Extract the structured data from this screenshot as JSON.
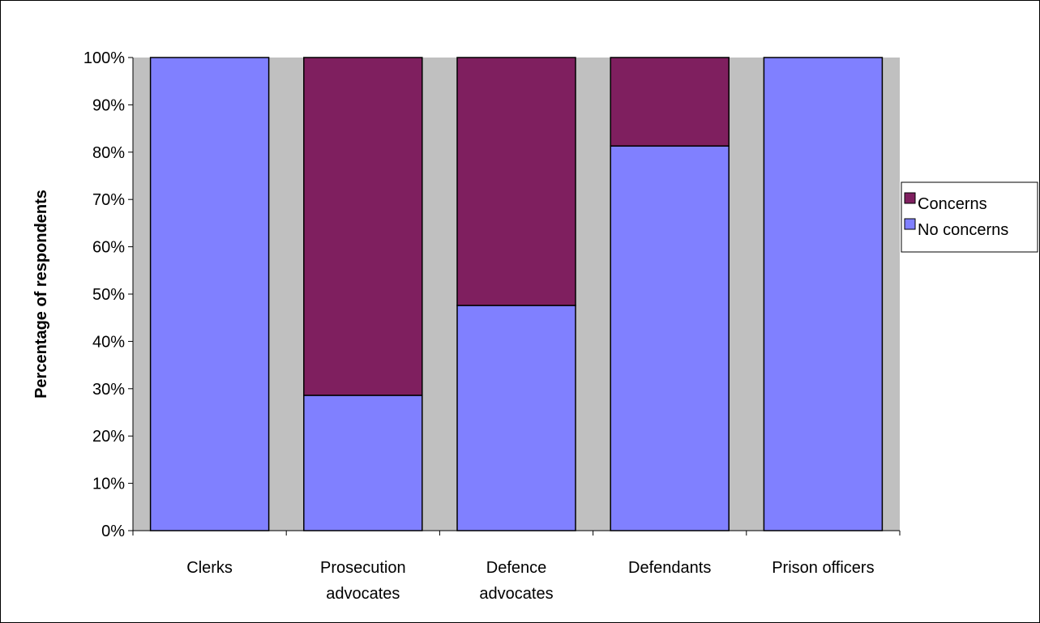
{
  "chart_data": {
    "type": "bar",
    "stacked": true,
    "percent_stacked": true,
    "title": "",
    "xlabel": "",
    "ylabel": "Percentage of respondents",
    "categories": [
      [
        "Clerks"
      ],
      [
        "Prosecution",
        "advocates"
      ],
      [
        "Defence",
        "advocates"
      ],
      [
        "Defendants"
      ],
      [
        "Prison officers"
      ]
    ],
    "series": [
      {
        "name": "No concerns",
        "color": "#8080ff",
        "values": [
          100,
          28.6,
          47.6,
          81.3,
          100
        ]
      },
      {
        "name": "Concerns",
        "color": "#7f1f5f",
        "values": [
          0,
          71.4,
          52.4,
          18.7,
          0
        ]
      }
    ],
    "yticks": [
      "0%",
      "10%",
      "20%",
      "30%",
      "40%",
      "50%",
      "60%",
      "70%",
      "80%",
      "90%",
      "100%"
    ],
    "ylim": [
      0,
      100
    ],
    "plot_background": "#c0c0c0",
    "grid": false,
    "legend": {
      "position": "right",
      "entries": [
        "Concerns",
        "No concerns"
      ]
    }
  }
}
